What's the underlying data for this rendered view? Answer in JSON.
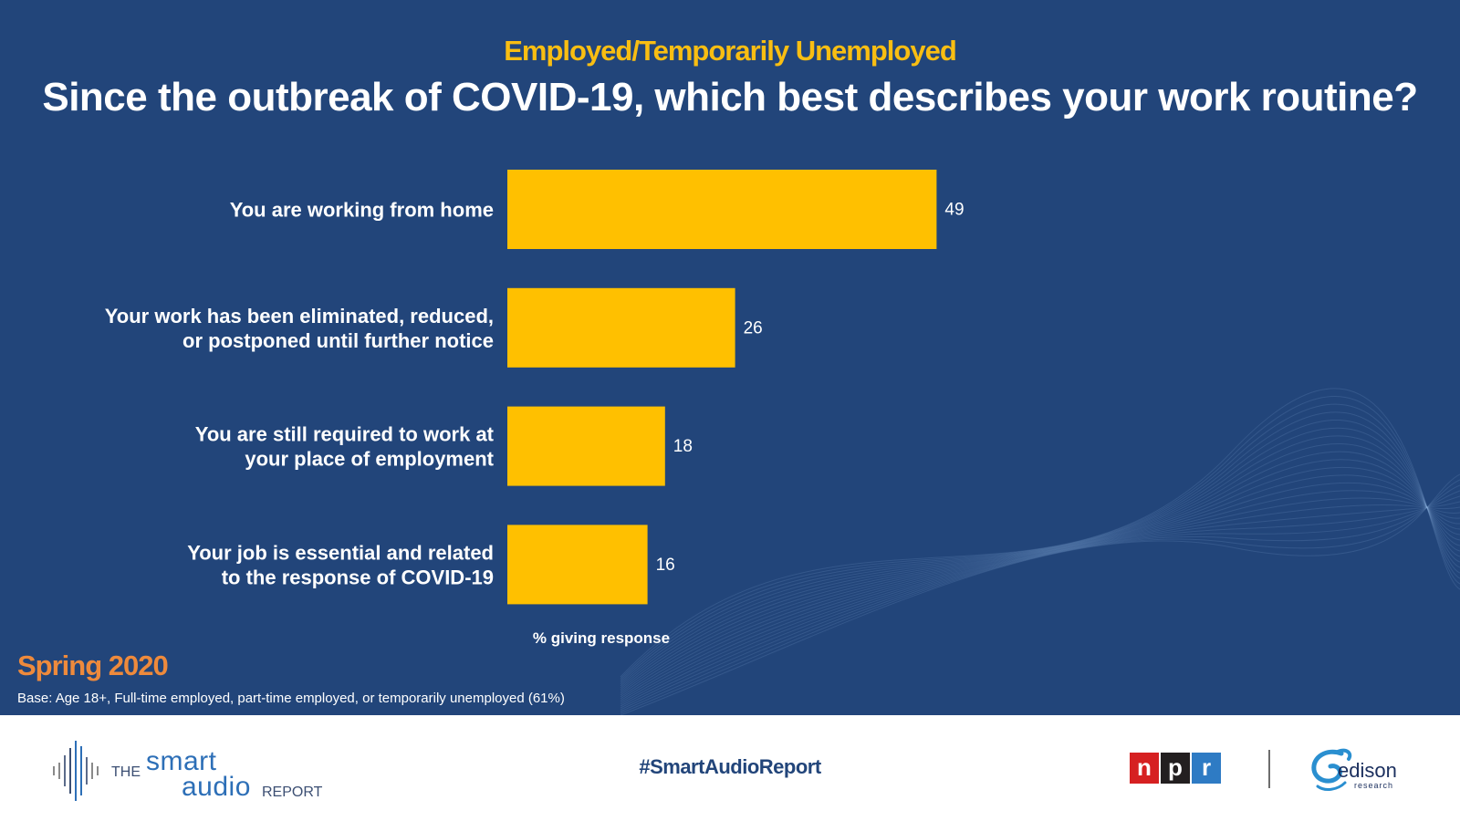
{
  "header": {
    "subtitle": "Employed/Temporarily Unemployed",
    "title": "Since the outbreak of COVID-19, which best describes your work routine?"
  },
  "chart_data": {
    "type": "bar",
    "orientation": "horizontal",
    "title": "Since the outbreak of COVID-19, which best describes your work routine?",
    "categories": [
      [
        "You are working from home"
      ],
      [
        "Your work has been eliminated, reduced,",
        "or postponed until further notice"
      ],
      [
        "You are still required to work at",
        "your place of employment"
      ],
      [
        "Your job is essential and related",
        "to the response of COVID-19"
      ]
    ],
    "values": [
      49,
      26,
      18,
      16
    ],
    "xlabel": "% giving response",
    "ylabel": "",
    "xlim": [
      0,
      100
    ],
    "grid": false,
    "bar_color": "#FFC000"
  },
  "footnote": {
    "season": "Spring 2020",
    "base": "Base: Age 18+, Full-time employed, part-time employed, or temporarily unemployed (61%)"
  },
  "footer": {
    "logo_the": "THE",
    "logo_smart": "smart",
    "logo_audio": "audio",
    "logo_report": "REPORT",
    "hashtag": "#SmartAudioReport",
    "npr_letters": [
      "n",
      "p",
      "r"
    ],
    "npr_colors": [
      "#D62021",
      "#231F20",
      "#2E7BC4"
    ],
    "edison_word": "edison",
    "edison_sub": "research"
  },
  "colors": {
    "background": "#22457a",
    "accent": "#f9be12",
    "season": "#ee8a3c"
  }
}
